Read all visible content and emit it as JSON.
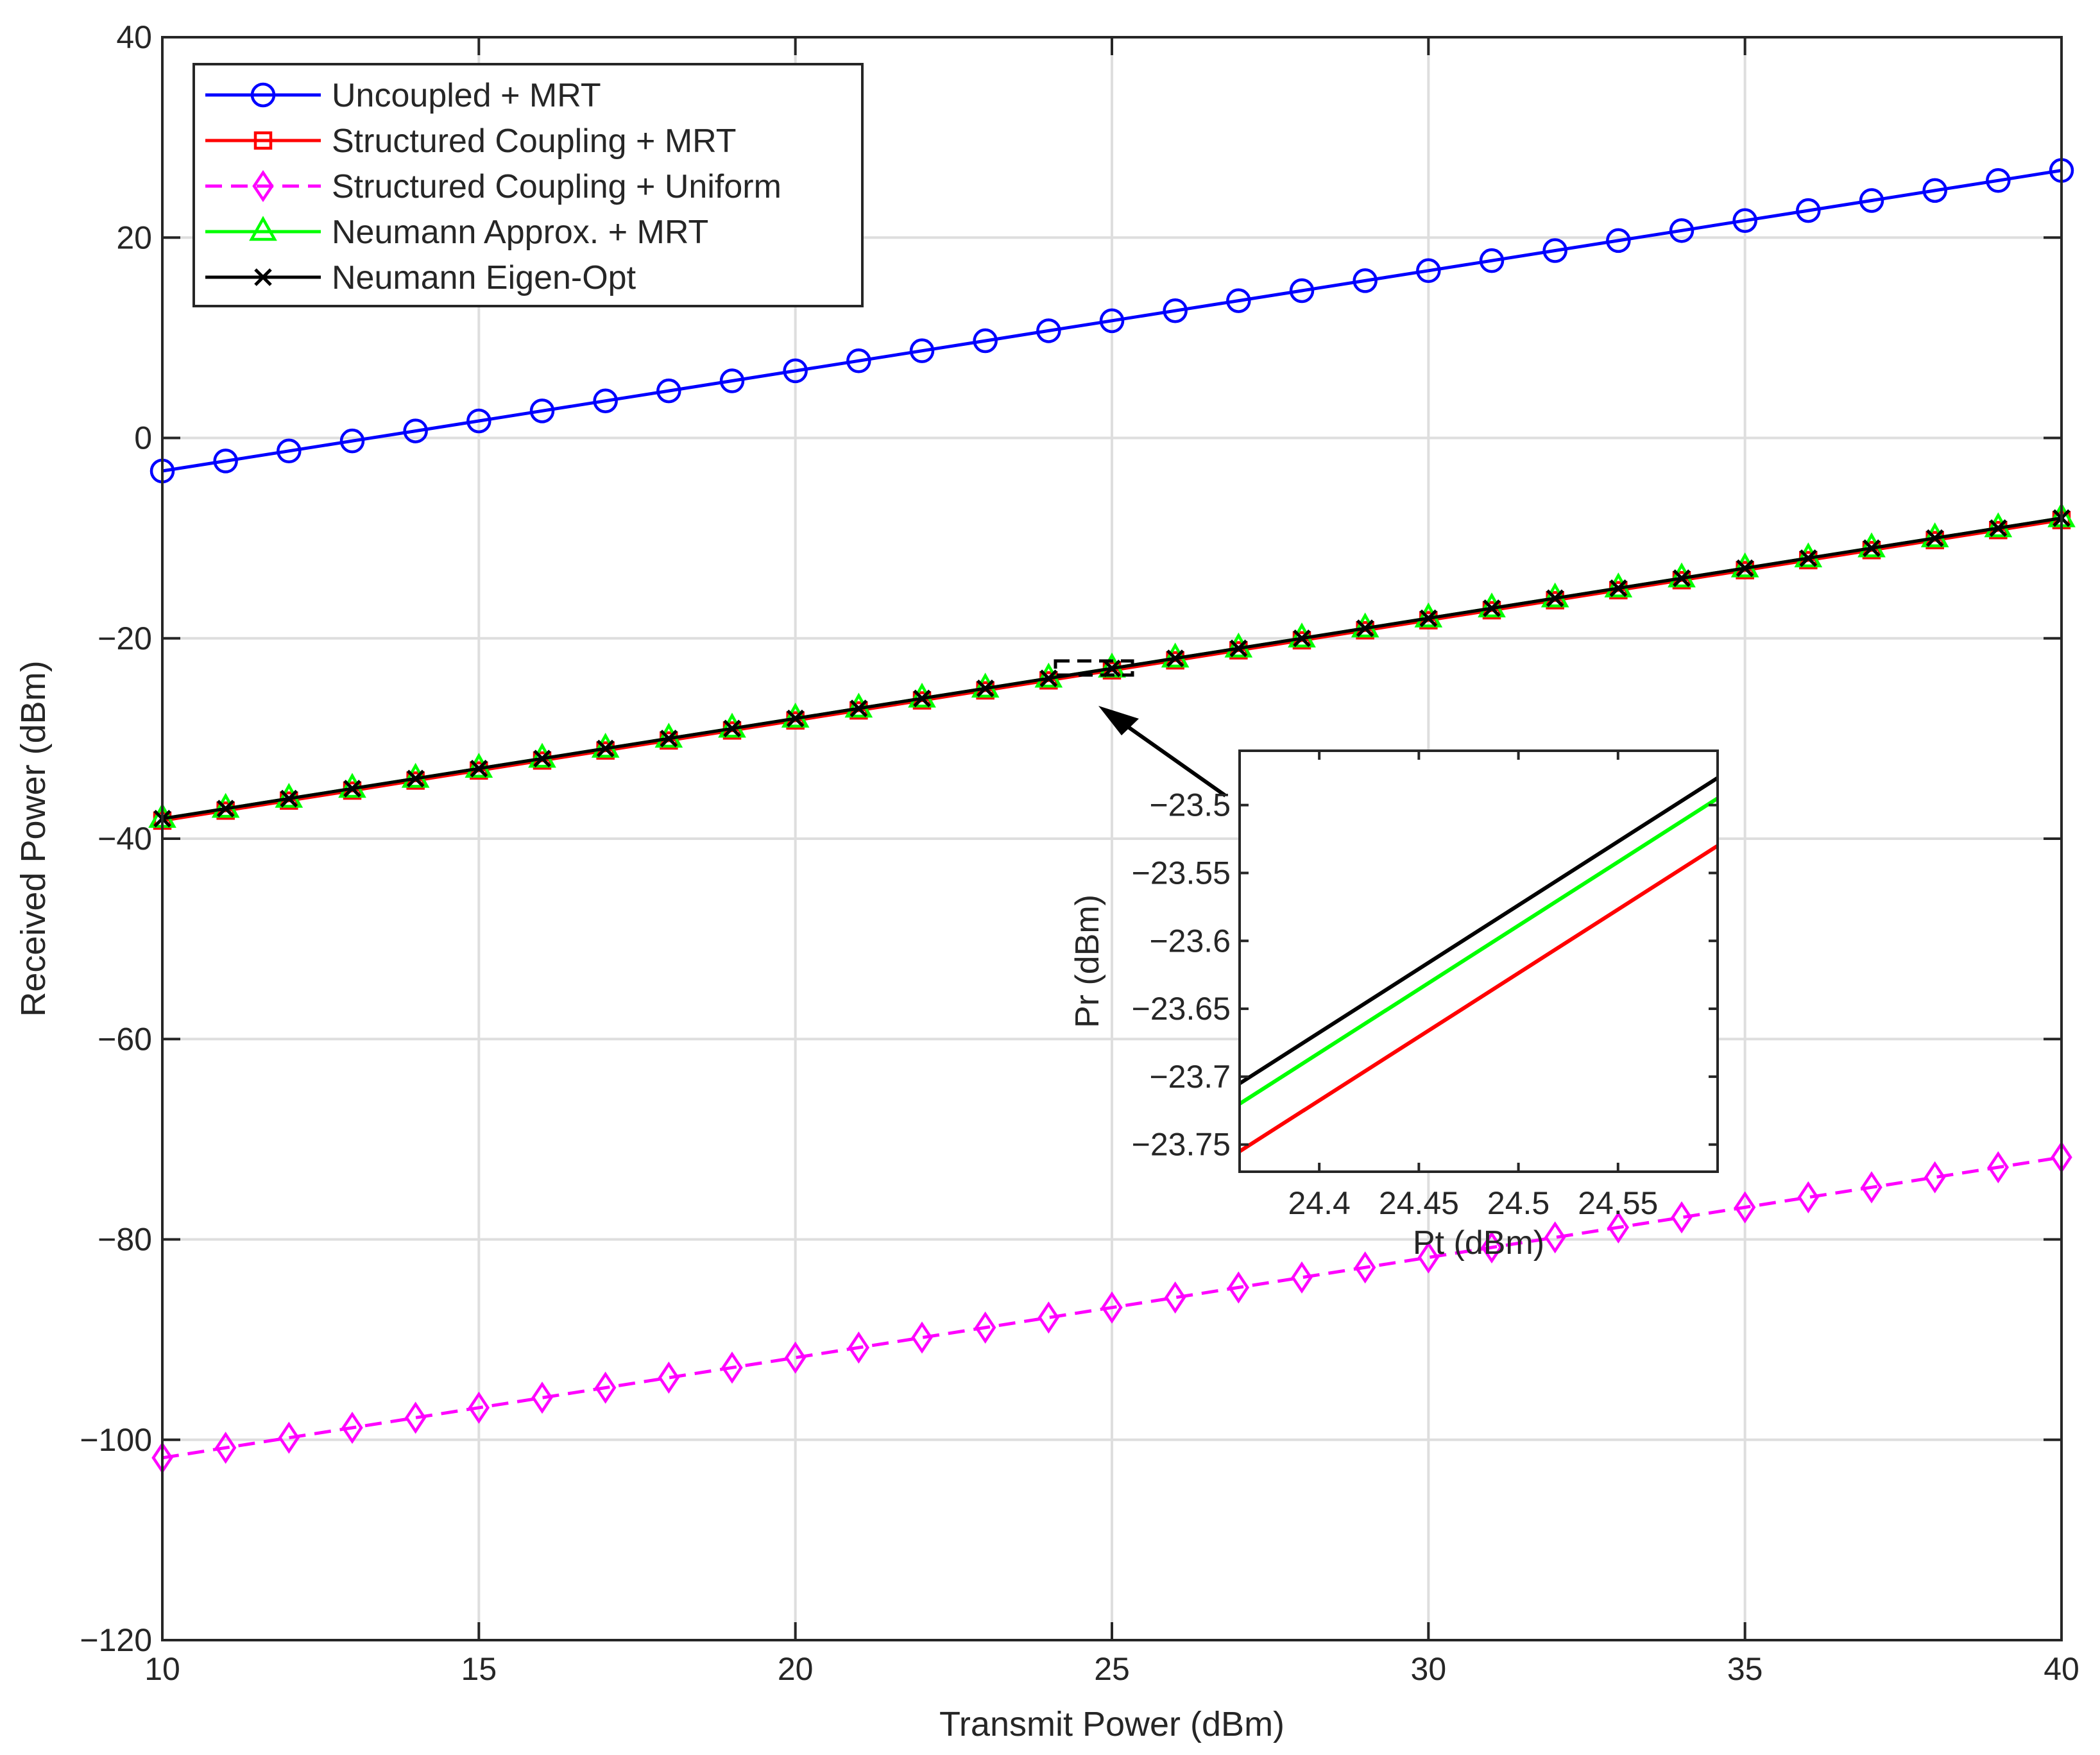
{
  "chart_data": [
    {
      "type": "line",
      "title": "",
      "xlabel": "Transmit Power (dBm)",
      "ylabel": "Received Power (dBm)",
      "xlim": [
        10,
        40
      ],
      "ylim": [
        -120,
        40
      ],
      "xticks": [
        10,
        15,
        20,
        25,
        30,
        35,
        40
      ],
      "yticks": [
        -120,
        -100,
        -80,
        -60,
        -40,
        -20,
        0,
        20,
        40
      ],
      "grid": true,
      "legend": "top-left",
      "x": [
        10,
        11,
        12,
        13,
        14,
        15,
        16,
        17,
        18,
        19,
        20,
        21,
        22,
        23,
        24,
        25,
        26,
        27,
        28,
        29,
        30,
        31,
        32,
        33,
        34,
        35,
        36,
        37,
        38,
        39,
        40
      ],
      "series": [
        {
          "name": "Uncoupled + MRT",
          "color": "#0000ff",
          "marker": "circle",
          "dash": "solid",
          "values": [
            -3.3,
            -2.3,
            -1.3,
            -0.3,
            0.7,
            1.7,
            2.7,
            3.7,
            4.7,
            5.7,
            6.7,
            7.7,
            8.7,
            9.7,
            10.7,
            11.7,
            12.7,
            13.7,
            14.7,
            15.7,
            16.7,
            17.7,
            18.7,
            19.7,
            20.7,
            21.7,
            22.7,
            23.7,
            24.7,
            25.7,
            26.7
          ]
        },
        {
          "name": "Structured Coupling + MRT",
          "color": "#ff0000",
          "marker": "square",
          "dash": "solid",
          "values": [
            -38.2,
            -37.2,
            -36.2,
            -35.2,
            -34.2,
            -33.2,
            -32.2,
            -31.2,
            -30.2,
            -29.2,
            -28.2,
            -27.2,
            -26.2,
            -25.2,
            -24.2,
            -23.2,
            -22.2,
            -21.2,
            -20.2,
            -19.2,
            -18.2,
            -17.2,
            -16.2,
            -15.2,
            -14.2,
            -13.2,
            -12.2,
            -11.2,
            -10.2,
            -9.2,
            -8.2
          ]
        },
        {
          "name": "Structured Coupling + Uniform",
          "color": "#ff00ff",
          "marker": "diamond",
          "dash": "dashed",
          "values": [
            -101.8,
            -100.8,
            -99.8,
            -98.8,
            -97.8,
            -96.8,
            -95.8,
            -94.8,
            -93.8,
            -92.8,
            -91.8,
            -90.8,
            -89.8,
            -88.8,
            -87.8,
            -86.8,
            -85.8,
            -84.8,
            -83.8,
            -82.8,
            -81.8,
            -80.8,
            -79.8,
            -78.8,
            -77.8,
            -76.8,
            -75.8,
            -74.8,
            -73.8,
            -72.8,
            -71.8
          ]
        },
        {
          "name": "Neumann Approx. + MRT",
          "color": "#00ff00",
          "marker": "triangle",
          "dash": "solid",
          "values": [
            -38.0,
            -37.0,
            -36.0,
            -35.0,
            -34.0,
            -33.0,
            -32.0,
            -31.0,
            -30.0,
            -29.0,
            -28.0,
            -27.0,
            -26.0,
            -25.0,
            -24.0,
            -23.0,
            -22.0,
            -21.0,
            -20.0,
            -19.0,
            -18.0,
            -17.0,
            -16.0,
            -15.0,
            -14.0,
            -13.0,
            -12.0,
            -11.0,
            -10.0,
            -9.0,
            -8.0
          ]
        },
        {
          "name": "Neumann Eigen-Opt",
          "color": "#000000",
          "marker": "x",
          "dash": "solid",
          "values": [
            -38.0,
            -37.0,
            -36.0,
            -35.0,
            -34.0,
            -33.0,
            -32.0,
            -31.0,
            -30.0,
            -29.0,
            -28.0,
            -27.0,
            -26.0,
            -25.0,
            -24.0,
            -23.0,
            -22.0,
            -21.0,
            -20.0,
            -19.0,
            -18.0,
            -17.0,
            -16.0,
            -15.0,
            -14.0,
            -13.0,
            -12.0,
            -11.0,
            -10.0,
            -9.0,
            -8.0
          ]
        }
      ]
    },
    {
      "type": "line",
      "title": "",
      "xlabel": "Pt (dBm)",
      "ylabel": "Pr (dBm)",
      "xlim": [
        24.36,
        24.6
      ],
      "ylim": [
        -23.77,
        -23.46
      ],
      "xticks": [
        24.4,
        24.45,
        24.5,
        24.55
      ],
      "xtick_labels": [
        "24.4",
        "24.45",
        "24.5",
        "24.55"
      ],
      "yticks": [
        -23.75,
        -23.7,
        -23.65,
        -23.6,
        -23.55,
        -23.5
      ],
      "ytick_labels": [
        "-23.75",
        "-23.7",
        "-23.65",
        "-23.6",
        "-23.55",
        "-23.5"
      ],
      "grid": false,
      "x": [
        24.36,
        24.6
      ],
      "series": [
        {
          "color": "#ff0000",
          "values": [
            -23.755,
            -23.53
          ]
        },
        {
          "color": "#00ff00",
          "values": [
            -23.72,
            -23.495
          ]
        },
        {
          "color": "#000000",
          "values": [
            -23.705,
            -23.48
          ]
        }
      ]
    }
  ]
}
